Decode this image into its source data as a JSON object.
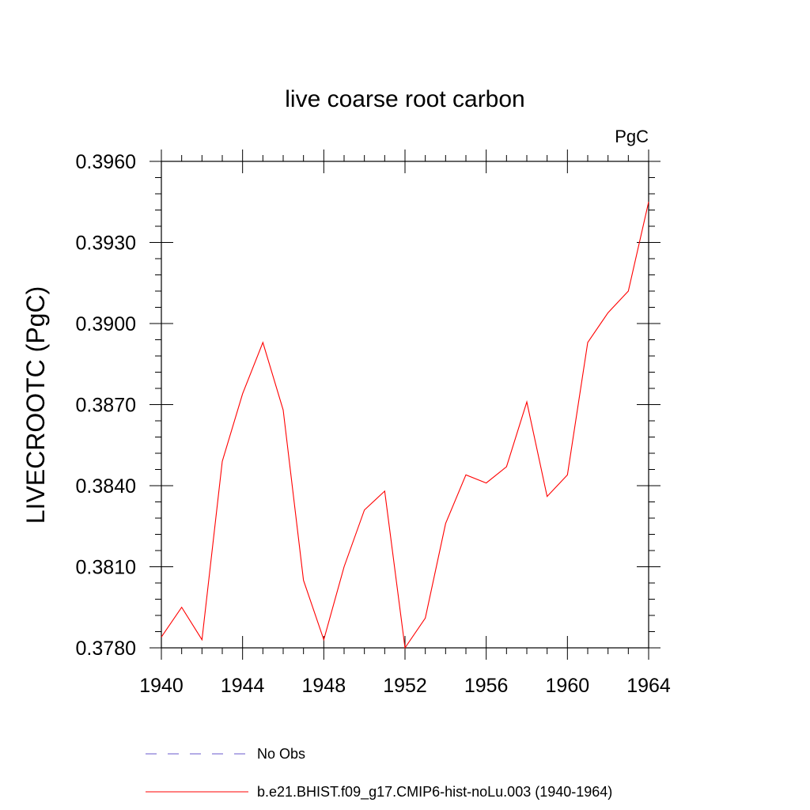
{
  "chart_data": {
    "type": "line",
    "title": "live coarse root carbon",
    "units": "PgC",
    "xlabel": "",
    "ylabel": "LIVECROOTC  (PgC)",
    "xlim": [
      1940,
      1964
    ],
    "ylim": [
      0.378,
      0.396
    ],
    "x_ticks": [
      "1940",
      "1944",
      "1948",
      "1952",
      "1956",
      "1960",
      "1964"
    ],
    "y_ticks": [
      "0.3780",
      "0.3810",
      "0.3840",
      "0.3870",
      "0.3900",
      "0.3930",
      "0.3960"
    ],
    "grid": false,
    "legend_position": "bottom",
    "series": [
      {
        "name": "No Obs",
        "color": "#6a5acd",
        "style": "dashed",
        "values": []
      },
      {
        "name": "b.e21.BHIST.f09_g17.CMIP6-hist-noLu.003 (1940-1964)",
        "color": "#ff0000",
        "style": "solid",
        "x": [
          1940,
          1941,
          1942,
          1943,
          1944,
          1945,
          1946,
          1947,
          1948,
          1949,
          1950,
          1951,
          1952,
          1953,
          1954,
          1955,
          1956,
          1957,
          1958,
          1959,
          1960,
          1961,
          1962,
          1963,
          1964
        ],
        "values": [
          0.3784,
          0.3795,
          0.3783,
          0.3849,
          0.3874,
          0.3893,
          0.3868,
          0.3805,
          0.3783,
          0.381,
          0.3831,
          0.3838,
          0.378,
          0.3791,
          0.3826,
          0.3844,
          0.3841,
          0.3847,
          0.3871,
          0.3836,
          0.3844,
          0.3893,
          0.3904,
          0.3912,
          0.3945
        ]
      }
    ]
  }
}
